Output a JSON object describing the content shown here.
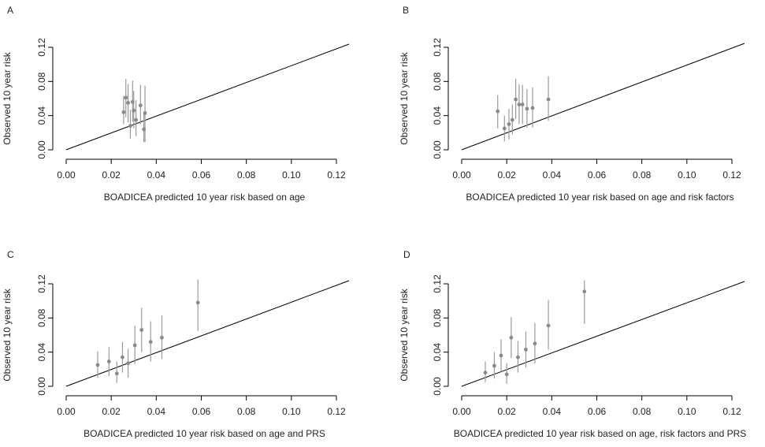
{
  "chart_data": [
    {
      "type": "scatter",
      "panel": "A",
      "xlabel": "BOADICEA predicted 10 year risk based on age",
      "ylabel": "Observed 10 year risk",
      "xlim": [
        0,
        0.12
      ],
      "ylim": [
        0,
        0.12
      ],
      "x_ticks": [
        "0.00",
        "0.02",
        "0.04",
        "0.06",
        "0.08",
        "0.10",
        "0.12"
      ],
      "y_ticks": [
        "0.00",
        "0.04",
        "0.08",
        "0.12"
      ],
      "reference_line": "y = x",
      "points": [
        {
          "x": 0.0255,
          "y": 0.044,
          "lo": 0.03,
          "hi": 0.063
        },
        {
          "x": 0.0265,
          "y": 0.061,
          "lo": 0.038,
          "hi": 0.083
        },
        {
          "x": 0.0275,
          "y": 0.055,
          "lo": 0.032,
          "hi": 0.077
        },
        {
          "x": 0.0285,
          "y": 0.028,
          "lo": 0.013,
          "hi": 0.047
        },
        {
          "x": 0.0295,
          "y": 0.056,
          "lo": 0.033,
          "hi": 0.081
        },
        {
          "x": 0.03,
          "y": 0.046,
          "lo": 0.025,
          "hi": 0.069
        },
        {
          "x": 0.031,
          "y": 0.035,
          "lo": 0.016,
          "hi": 0.058
        },
        {
          "x": 0.033,
          "y": 0.052,
          "lo": 0.03,
          "hi": 0.076
        },
        {
          "x": 0.0345,
          "y": 0.024,
          "lo": 0.009,
          "hi": 0.042
        },
        {
          "x": 0.035,
          "y": 0.043,
          "lo": 0.009,
          "hi": 0.075
        }
      ]
    },
    {
      "type": "scatter",
      "panel": "B",
      "xlabel": "BOADICEA predicted 10 year risk based on age and risk factors",
      "ylabel": "Observed 10 year risk",
      "xlim": [
        0,
        0.12
      ],
      "ylim": [
        0,
        0.12
      ],
      "x_ticks": [
        "0.00",
        "0.02",
        "0.04",
        "0.06",
        "0.08",
        "0.10",
        "0.12"
      ],
      "y_ticks": [
        "0.00",
        "0.04",
        "0.08",
        "0.12"
      ],
      "reference_line": "y = x",
      "points": [
        {
          "x": 0.016,
          "y": 0.045,
          "lo": 0.025,
          "hi": 0.064
        },
        {
          "x": 0.019,
          "y": 0.025,
          "lo": 0.01,
          "hi": 0.04
        },
        {
          "x": 0.021,
          "y": 0.03,
          "lo": 0.012,
          "hi": 0.048
        },
        {
          "x": 0.0225,
          "y": 0.035,
          "lo": 0.018,
          "hi": 0.053
        },
        {
          "x": 0.024,
          "y": 0.059,
          "lo": 0.036,
          "hi": 0.083
        },
        {
          "x": 0.0255,
          "y": 0.053,
          "lo": 0.03,
          "hi": 0.077
        },
        {
          "x": 0.027,
          "y": 0.053,
          "lo": 0.03,
          "hi": 0.076
        },
        {
          "x": 0.029,
          "y": 0.048,
          "lo": 0.026,
          "hi": 0.071
        },
        {
          "x": 0.0315,
          "y": 0.049,
          "lo": 0.026,
          "hi": 0.073
        },
        {
          "x": 0.0385,
          "y": 0.059,
          "lo": 0.034,
          "hi": 0.086
        }
      ]
    },
    {
      "type": "scatter",
      "panel": "C",
      "xlabel": "BOADICEA predicted 10 year risk based on age and PRS",
      "ylabel": "Observed 10 year risk",
      "xlim": [
        0,
        0.12
      ],
      "ylim": [
        0,
        0.12
      ],
      "x_ticks": [
        "0.00",
        "0.02",
        "0.04",
        "0.06",
        "0.08",
        "0.10",
        "0.12"
      ],
      "y_ticks": [
        "0.00",
        "0.04",
        "0.08",
        "0.12"
      ],
      "reference_line": "y = x",
      "points": [
        {
          "x": 0.014,
          "y": 0.025,
          "lo": 0.01,
          "hi": 0.041
        },
        {
          "x": 0.019,
          "y": 0.029,
          "lo": 0.012,
          "hi": 0.046
        },
        {
          "x": 0.0225,
          "y": 0.015,
          "lo": 0.004,
          "hi": 0.029
        },
        {
          "x": 0.025,
          "y": 0.034,
          "lo": 0.016,
          "hi": 0.052
        },
        {
          "x": 0.0275,
          "y": 0.027,
          "lo": 0.01,
          "hi": 0.044
        },
        {
          "x": 0.0305,
          "y": 0.048,
          "lo": 0.026,
          "hi": 0.071
        },
        {
          "x": 0.0335,
          "y": 0.066,
          "lo": 0.04,
          "hi": 0.092
        },
        {
          "x": 0.0375,
          "y": 0.052,
          "lo": 0.029,
          "hi": 0.076
        },
        {
          "x": 0.0425,
          "y": 0.057,
          "lo": 0.032,
          "hi": 0.083
        },
        {
          "x": 0.0585,
          "y": 0.098,
          "lo": 0.065,
          "hi": 0.125
        }
      ]
    },
    {
      "type": "scatter",
      "panel": "D",
      "xlabel": "BOADICEA predicted 10 year risk based on age, risk factors and PRS",
      "ylabel": "Observed 10 year risk",
      "xlim": [
        0,
        0.12
      ],
      "ylim": [
        0,
        0.12
      ],
      "x_ticks": [
        "0.00",
        "0.02",
        "0.04",
        "0.06",
        "0.08",
        "0.10",
        "0.12"
      ],
      "y_ticks": [
        "0.00",
        "0.04",
        "0.08",
        "0.12"
      ],
      "reference_line": "y = x",
      "points": [
        {
          "x": 0.0105,
          "y": 0.016,
          "lo": 0.005,
          "hi": 0.029
        },
        {
          "x": 0.0145,
          "y": 0.024,
          "lo": 0.009,
          "hi": 0.04
        },
        {
          "x": 0.0175,
          "y": 0.036,
          "lo": 0.017,
          "hi": 0.055
        },
        {
          "x": 0.02,
          "y": 0.014,
          "lo": 0.003,
          "hi": 0.027
        },
        {
          "x": 0.022,
          "y": 0.057,
          "lo": 0.033,
          "hi": 0.081
        },
        {
          "x": 0.025,
          "y": 0.034,
          "lo": 0.016,
          "hi": 0.053
        },
        {
          "x": 0.0285,
          "y": 0.043,
          "lo": 0.022,
          "hi": 0.064
        },
        {
          "x": 0.0325,
          "y": 0.05,
          "lo": 0.027,
          "hi": 0.074
        },
        {
          "x": 0.0385,
          "y": 0.071,
          "lo": 0.043,
          "hi": 0.101
        },
        {
          "x": 0.0545,
          "y": 0.111,
          "lo": 0.073,
          "hi": 0.124
        }
      ]
    }
  ],
  "colors": {
    "point": "#8a8a8a",
    "errorbar": "#9a9a9a",
    "line": "#000000",
    "axis": "#000000"
  }
}
